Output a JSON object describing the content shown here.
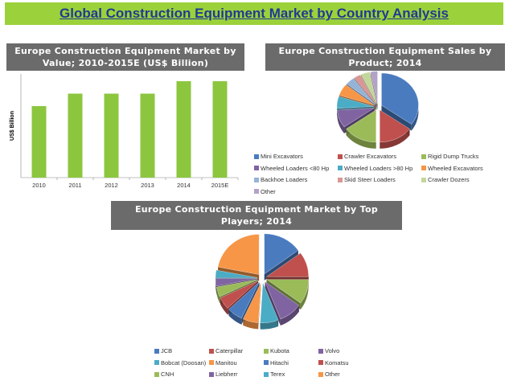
{
  "page_title": "Global Construction Equipment Market by Country Analysis",
  "chart_data": [
    {
      "type": "bar",
      "title": "Europe Construction Equipment Market by Value; 2010-2015E (US$ Billion)",
      "ylabel": "US$ Billion",
      "xlabel": "",
      "categories": [
        "2010",
        "2011",
        "2012",
        "2013",
        "2014",
        "2015E"
      ],
      "values": [
        6.9,
        8.1,
        8.1,
        8.1,
        9.3,
        9.3
      ],
      "ylim": [
        0,
        10
      ],
      "grid": false,
      "colors": [
        "#8cc63f"
      ]
    },
    {
      "type": "pie",
      "title": "Europe Construction Equipment Sales by Product; 2014",
      "labels": [
        "Mini Excavators",
        "Crawler Excavators",
        "Rigid Dump Trucks",
        "Wheeled Loaders <80 Hp",
        "Wheeled Loaders >80 Hp",
        "Wheeled Excavators",
        "Backhoe Loaders",
        "Skid Steer Loaders",
        "Crawler Dozers",
        "Other"
      ],
      "values": [
        35,
        15,
        15,
        9,
        6,
        6,
        4,
        3,
        4,
        3
      ],
      "colors": [
        "#4a7bbf",
        "#c0504d",
        "#9bbb59",
        "#8064a2",
        "#4bacc6",
        "#f79646",
        "#95b3d7",
        "#da9694",
        "#c3d69b",
        "#b3a2c7"
      ],
      "legend_position": "bottom"
    },
    {
      "type": "pie",
      "title": "Europe Construction Equipment Market by Top Players; 2014",
      "labels": [
        "JCB",
        "Caterpillar",
        "Kubota",
        "Volvo",
        "Bobcat (Doosan)",
        "Manitou",
        "Hitachi",
        "Komatsu",
        "CNH",
        "Liebherr",
        "Terex",
        "Other"
      ],
      "values": [
        15,
        10,
        10,
        9,
        7,
        6,
        6,
        5,
        4,
        3,
        3,
        22
      ],
      "colors": [
        "#4a7bbf",
        "#c0504d",
        "#9bbb59",
        "#8064a2",
        "#4bacc6",
        "#f79646",
        "#4a7bbf",
        "#c0504d",
        "#9bbb59",
        "#8064a2",
        "#4bacc6",
        "#f79646"
      ],
      "legend_position": "bottom"
    }
  ]
}
